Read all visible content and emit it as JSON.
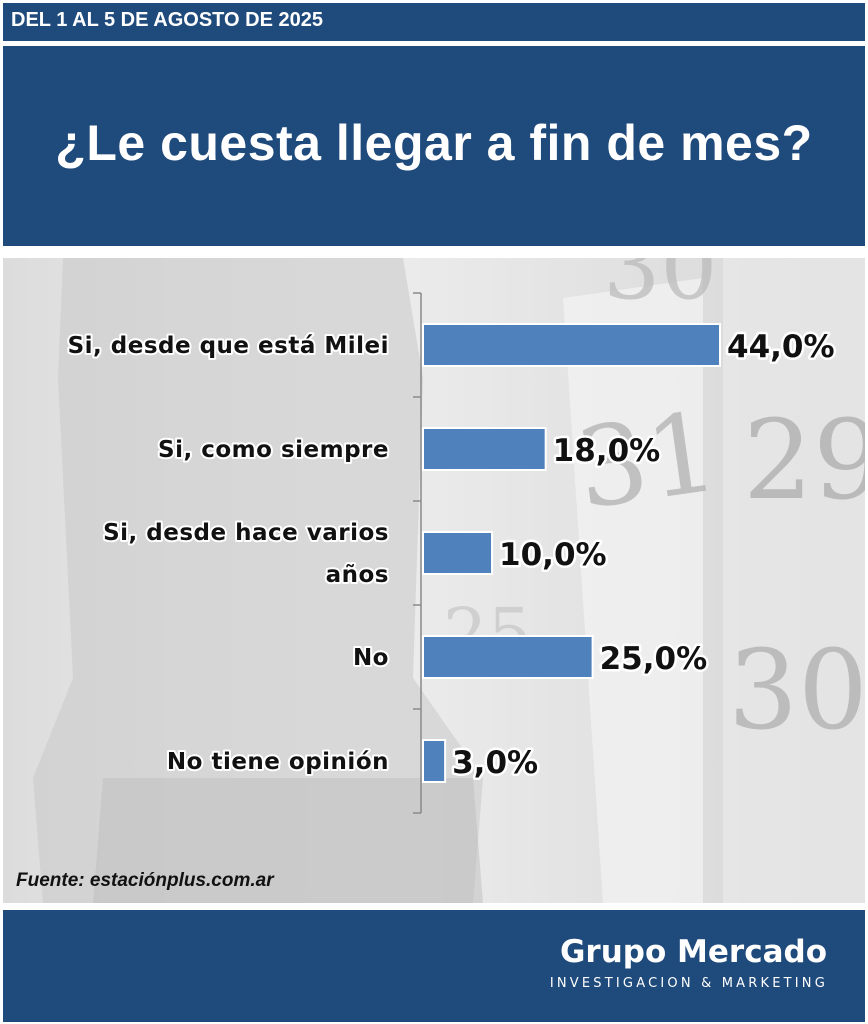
{
  "header": {
    "date": "DEL 1 AL 5 DE AGOSTO DE 2025",
    "title": "¿Le cuesta llegar a fin de mes?"
  },
  "chart_data": {
    "type": "bar",
    "orientation": "horizontal",
    "categories": [
      "Si, desde que está Milei",
      "Si, como siempre",
      "Si, desde hace varios años",
      "No",
      "No tiene opinión"
    ],
    "values": [
      44.0,
      18.0,
      10.0,
      25.0,
      3.0
    ],
    "value_labels": [
      "44,0%",
      "18,0%",
      "10,0%",
      "25,0%",
      "3,0%"
    ],
    "category_lines": [
      [
        "Si, desde que está Milei"
      ],
      [
        "Si, como siempre"
      ],
      [
        "Si, desde hace varios",
        "años"
      ],
      [
        "No"
      ],
      [
        "No tiene opinión"
      ]
    ],
    "bar_color": "#4f81bd",
    "xlim": [
      0,
      44
    ],
    "grid": false,
    "legend": "none"
  },
  "source": "Fuente: estaciónplus.com.ar",
  "brand": {
    "name": "Grupo Mercado",
    "tagline": "INVESTIGACION & MARKETING"
  },
  "colors": {
    "header_bg": "#1f4a7c",
    "bar": "#4f81bd"
  }
}
